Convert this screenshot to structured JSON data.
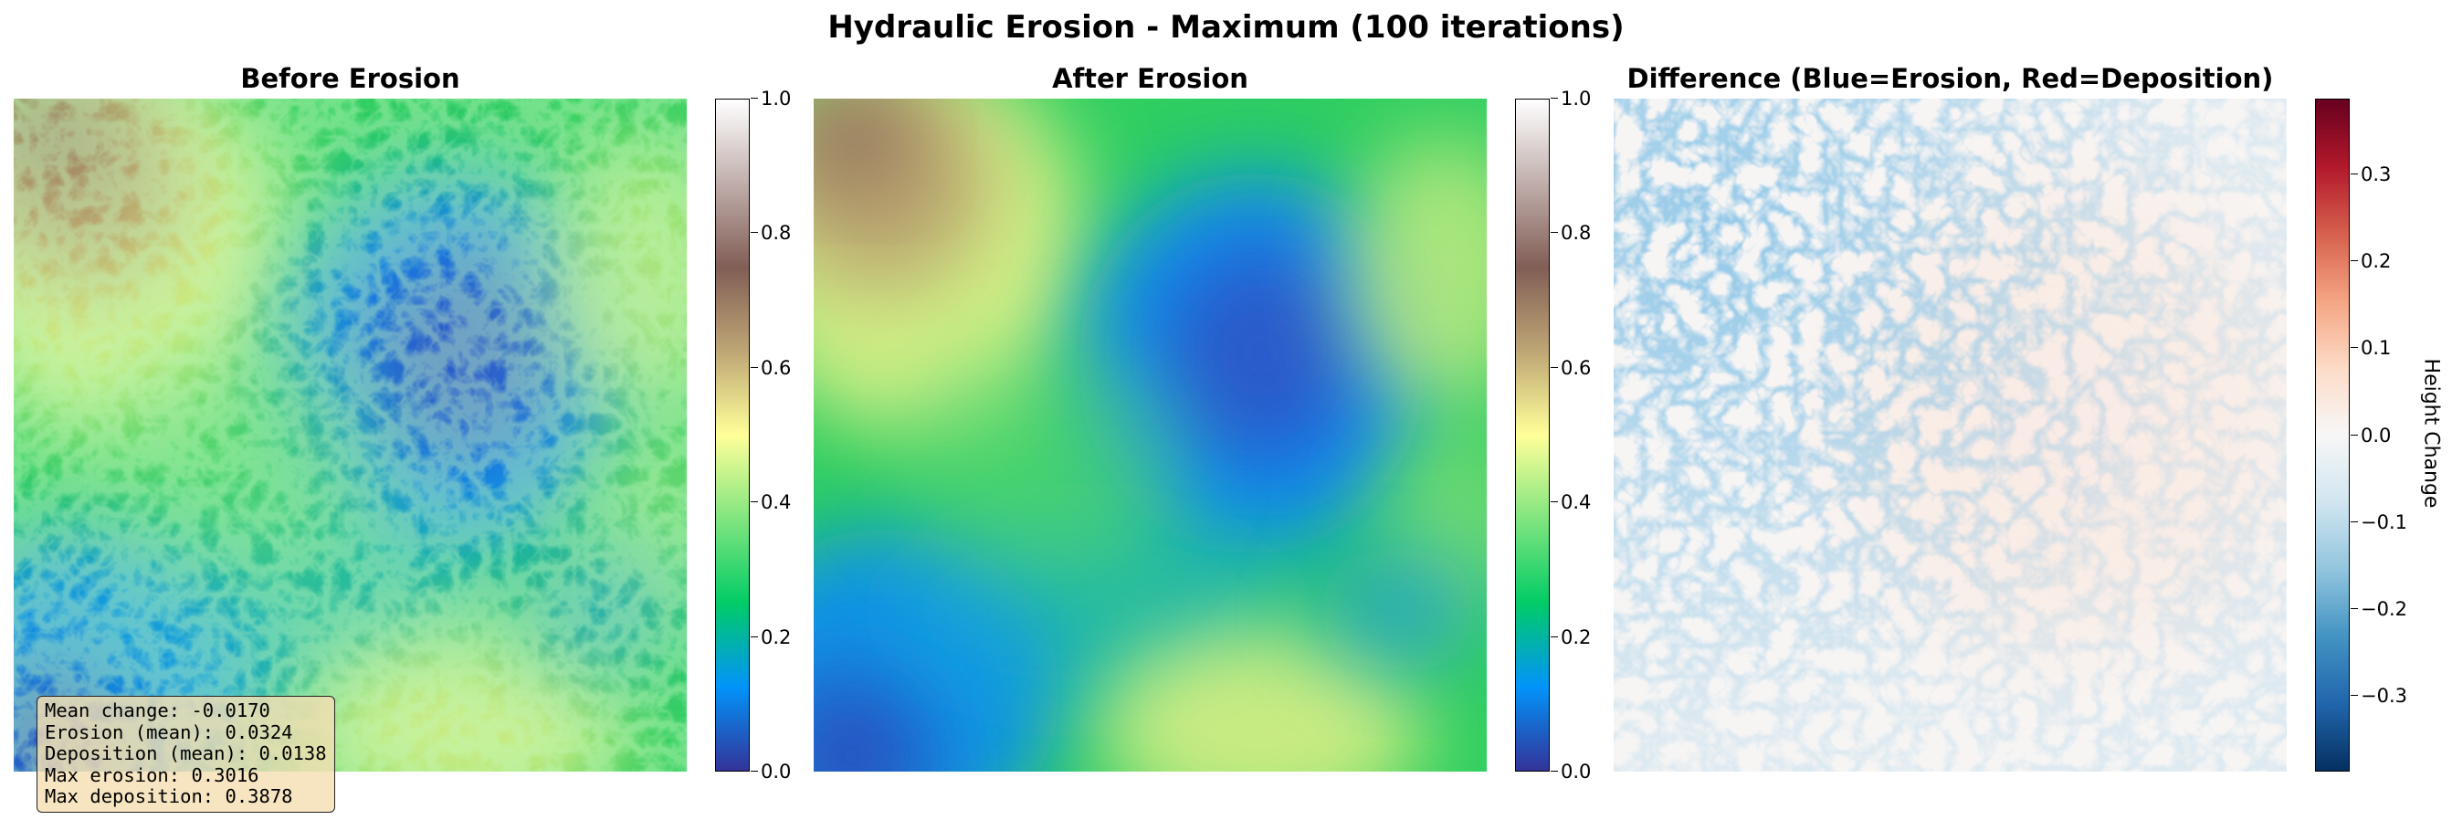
{
  "figure": {
    "title": "Hydraulic Erosion - Maximum (100 iterations)"
  },
  "colors": {
    "terrain_colormap": [
      "#333399",
      "#0294fa",
      "#01cc66",
      "#81e57f",
      "#ffff99",
      "#bea675",
      "#815e56",
      "#c0aeab",
      "#ffffff"
    ],
    "diverging_colormap": [
      "#053061",
      "#2166ac",
      "#4393c3",
      "#92c5de",
      "#d1e5f0",
      "#f7f7f7",
      "#fddbc7",
      "#f4a582",
      "#d6604d",
      "#b2182b",
      "#67001f"
    ]
  },
  "chart_data": [
    {
      "type": "heatmap",
      "title": "Before Erosion",
      "colormap": "terrain",
      "value_range": [
        0.0,
        1.0
      ],
      "colorbar_ticks": [
        "0.0",
        "0.2",
        "0.4",
        "0.6",
        "0.8",
        "1.0"
      ],
      "colorbar_label": "",
      "feature_regions": [
        {
          "region": "top-left",
          "level": 0.6
        },
        {
          "region": "upper-center",
          "level": 0.1
        },
        {
          "region": "left-bottom",
          "level": 0.15
        },
        {
          "region": "bottom-center",
          "level": 0.55
        },
        {
          "region": "right",
          "level": 0.5
        }
      ]
    },
    {
      "type": "heatmap",
      "title": "After Erosion",
      "colormap": "terrain",
      "value_range": [
        0.0,
        1.0
      ],
      "colorbar_ticks": [
        "0.0",
        "0.2",
        "0.4",
        "0.6",
        "0.8",
        "1.0"
      ],
      "colorbar_label": "",
      "feature_regions": [
        {
          "region": "top-left",
          "level": 0.55
        },
        {
          "region": "upper-center",
          "level": 0.08
        },
        {
          "region": "left-bottom",
          "level": 0.12
        },
        {
          "region": "bottom-center",
          "level": 0.48
        },
        {
          "region": "right",
          "level": 0.42
        }
      ]
    },
    {
      "type": "heatmap",
      "title": "Difference (Blue=Erosion, Red=Deposition)",
      "colormap": "RdBu_r",
      "value_range": [
        -0.3878,
        0.3878
      ],
      "colorbar_ticks": [
        "−0.3",
        "−0.2",
        "−0.1",
        "0.0",
        "0.1",
        "0.2",
        "0.3"
      ],
      "colorbar_tick_values": [
        -0.3,
        -0.2,
        -0.1,
        0.0,
        0.1,
        0.2,
        0.3
      ],
      "colorbar_label": "Height Change"
    }
  ],
  "stats": {
    "mean_change": "Mean change: -0.0170",
    "erosion_mean": "Erosion (mean): 0.0324",
    "deposition_mean": "Deposition (mean): 0.0138",
    "max_erosion": "Max erosion: 0.3016",
    "max_deposition": "Max deposition: 0.3878"
  }
}
